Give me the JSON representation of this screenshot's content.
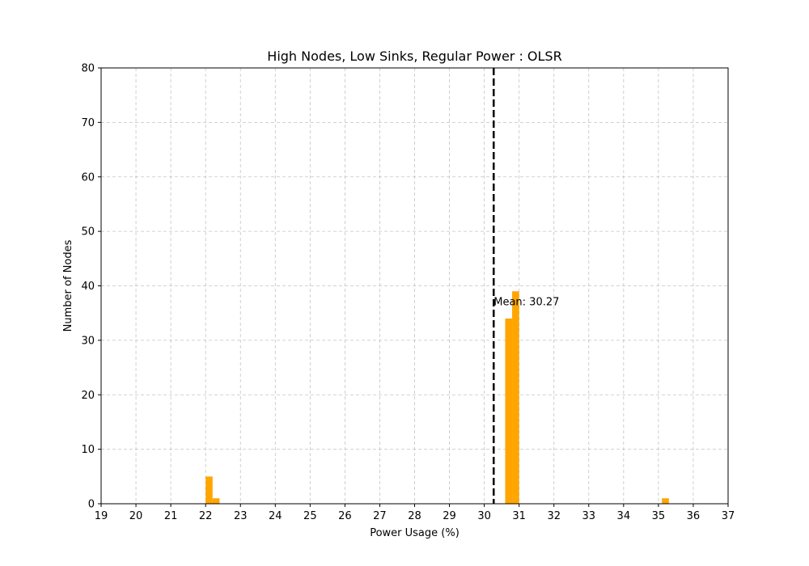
{
  "chart_data": {
    "type": "bar",
    "title": "High Nodes, Low Sinks, Regular Power : OLSR",
    "xlabel": "Power Usage (%)",
    "ylabel": "Number of Nodes",
    "xlim": [
      19,
      37
    ],
    "ylim": [
      0,
      80
    ],
    "xticks": [
      19,
      20,
      21,
      22,
      23,
      24,
      25,
      26,
      27,
      28,
      29,
      30,
      31,
      32,
      33,
      34,
      35,
      36,
      37
    ],
    "yticks": [
      0,
      10,
      20,
      30,
      40,
      50,
      60,
      70,
      80
    ],
    "grid": true,
    "bar_color": "#ffa500",
    "bins": [
      {
        "start": 22.0,
        "end": 22.2,
        "count": 5
      },
      {
        "start": 22.2,
        "end": 22.4,
        "count": 1
      },
      {
        "start": 30.6,
        "end": 30.8,
        "count": 34
      },
      {
        "start": 30.8,
        "end": 31.0,
        "count": 39
      },
      {
        "start": 35.1,
        "end": 35.3,
        "count": 1
      }
    ],
    "mean_line": {
      "value": 30.27,
      "label": "Mean: 30.27",
      "color": "#000000"
    }
  }
}
